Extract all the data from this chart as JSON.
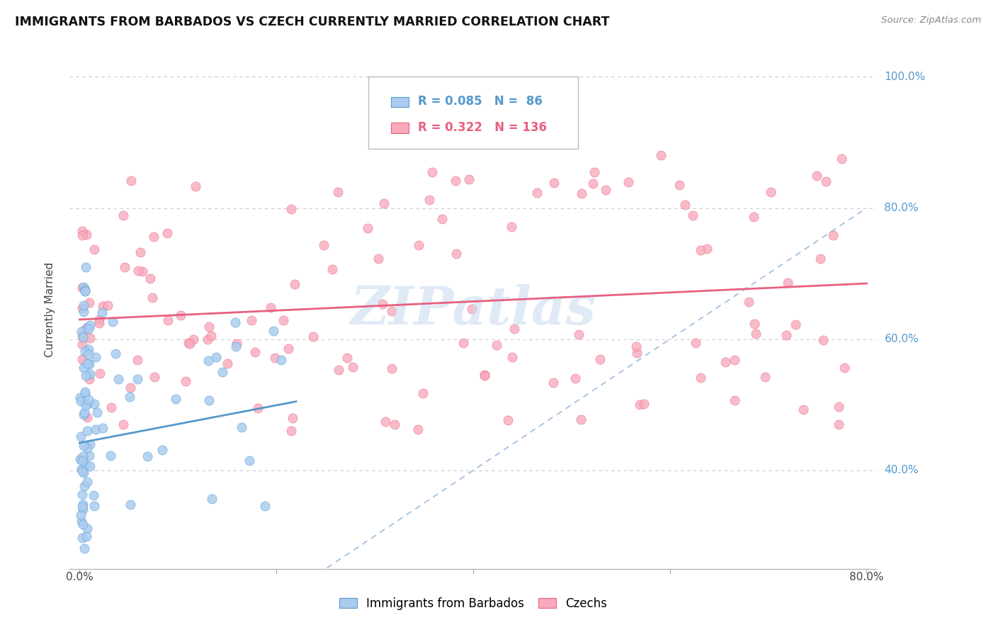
{
  "title": "IMMIGRANTS FROM BARBADOS VS CZECH CURRENTLY MARRIED CORRELATION CHART",
  "source": "Source: ZipAtlas.com",
  "ylabel": "Currently Married",
  "legend_label1": "Immigrants from Barbados",
  "legend_label2": "Czechs",
  "R1": 0.085,
  "N1": 86,
  "R2": 0.322,
  "N2": 136,
  "color_blue": "#aaccf0",
  "color_blue_dark": "#5599cc",
  "color_pink": "#f8aabc",
  "color_pink_dark": "#e86080",
  "color_diag": "#99bbdd",
  "watermark": "ZIPatlas",
  "xmin": 0.0,
  "xmax": 0.8,
  "ymin": 0.25,
  "ymax": 1.04,
  "yticks": [
    0.4,
    0.6,
    0.8,
    1.0
  ],
  "ytick_labels": [
    "40.0%",
    "60.0%",
    "80.0%",
    "100.0%"
  ],
  "blue_line_x0": 0.0,
  "blue_line_x1": 0.22,
  "blue_line_y0": 0.442,
  "blue_line_y1": 0.505,
  "pink_line_x0": 0.0,
  "pink_line_x1": 0.8,
  "pink_line_y0": 0.63,
  "pink_line_y1": 0.685
}
